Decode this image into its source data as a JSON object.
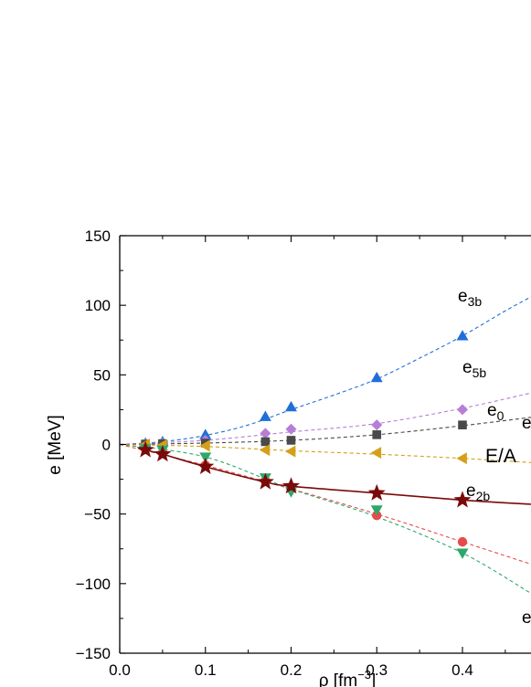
{
  "chart_data": {
    "type": "line",
    "title": "",
    "xlabel": "ρ [fm",
    "xlabel_sup": "−3",
    "xlabel_close": "]",
    "ylabel": "e [MeV]",
    "xlim": [
      0.0,
      0.48
    ],
    "ylim": [
      -150,
      150
    ],
    "x_ticks": [
      0.0,
      0.1,
      0.2,
      0.3,
      0.4
    ],
    "x_tick_labels": [
      "0.0",
      "0.1",
      "0.2",
      "0.3",
      "0.4"
    ],
    "y_ticks": [
      -150,
      -100,
      -50,
      0,
      50,
      100,
      150
    ],
    "y_tick_labels": [
      "−150",
      "−100",
      "−50",
      "0",
      "50",
      "100",
      "150"
    ],
    "grid": false,
    "series": [
      {
        "key": "e3b",
        "label_main": "e",
        "label_sub": "3b",
        "color": "#1f6fd8",
        "marker": "triangle-up",
        "line": "dashed",
        "x": [
          0.03,
          0.05,
          0.1,
          0.17,
          0.2,
          0.3,
          0.4
        ],
        "y": [
          1,
          2,
          7,
          20,
          27,
          48,
          78
        ],
        "fit_x": [
          0.0,
          0.05,
          0.1,
          0.15,
          0.2,
          0.25,
          0.3,
          0.35,
          0.4,
          0.45,
          0.48
        ],
        "fit_y": [
          0,
          2,
          6.5,
          14,
          25,
          35.5,
          47,
          62,
          78,
          96,
          106
        ]
      },
      {
        "key": "e5b",
        "label_main": "e",
        "label_sub": "5b",
        "color": "#b77ed6",
        "marker": "diamond",
        "line": "dashed",
        "x": [
          0.03,
          0.05,
          0.1,
          0.17,
          0.2,
          0.3,
          0.4
        ],
        "y": [
          0.5,
          1,
          3,
          8,
          11,
          14,
          25
        ],
        "fit_x": [
          0.0,
          0.1,
          0.2,
          0.3,
          0.4,
          0.48
        ],
        "fit_y": [
          0,
          3,
          9,
          15,
          26,
          37
        ]
      },
      {
        "key": "e0",
        "label_main": "e",
        "label_sub": "0",
        "color": "#4a4a4a",
        "marker": "square",
        "line": "dashed",
        "x": [
          0.03,
          0.05,
          0.1,
          0.17,
          0.2,
          0.3,
          0.4
        ],
        "y": [
          0.3,
          0.6,
          1,
          2,
          3,
          7,
          14
        ],
        "fit_x": [
          0.0,
          0.1,
          0.2,
          0.3,
          0.4,
          0.48
        ],
        "fit_y": [
          0,
          1,
          3,
          7,
          13.5,
          19.5
        ]
      },
      {
        "key": "e_tri",
        "label_main": "e",
        "label_sub": "",
        "color": "#d4a017",
        "marker": "triangle-left",
        "line": "dashed",
        "x": [
          0.03,
          0.05,
          0.1,
          0.17,
          0.2,
          0.3,
          0.4
        ],
        "y": [
          0,
          -0.5,
          -1,
          -4,
          -5,
          -6,
          -10
        ],
        "fit_x": [
          0.0,
          0.1,
          0.2,
          0.3,
          0.4,
          0.48
        ],
        "fit_y": [
          0,
          -1.5,
          -4.5,
          -7,
          -10,
          -13
        ]
      },
      {
        "key": "e2b",
        "label_main": "e",
        "label_sub": "2b",
        "color": "#e84a4a",
        "marker": "circle",
        "line": "dashed",
        "x": [
          0.03,
          0.05,
          0.1,
          0.17,
          0.2,
          0.3,
          0.4
        ],
        "y": [
          -3,
          -6,
          -15,
          -26,
          -32,
          -51,
          -70
        ],
        "fit_x": [
          0.0,
          0.1,
          0.2,
          0.3,
          0.4,
          0.48
        ],
        "fit_y": [
          0,
          -15,
          -32,
          -50,
          -70,
          -86
        ]
      },
      {
        "key": "e_down",
        "label_main": "e",
        "label_sub": "",
        "color": "#2ea86a",
        "marker": "triangle-down",
        "line": "dashed",
        "x": [
          0.03,
          0.05,
          0.1,
          0.17,
          0.2,
          0.3,
          0.4
        ],
        "y": [
          -3,
          -4,
          -9,
          -24,
          -34,
          -47,
          -78
        ],
        "fit_x": [
          0.0,
          0.1,
          0.2,
          0.3,
          0.4,
          0.48
        ],
        "fit_y": [
          0,
          -9,
          -32,
          -52,
          -78,
          -107
        ]
      },
      {
        "key": "EA",
        "label_main": "E/A",
        "label_sub": "",
        "color": "#7a0a0a",
        "marker": "star",
        "line": "solid",
        "x": [
          0.03,
          0.05,
          0.1,
          0.17,
          0.2,
          0.3,
          0.4
        ],
        "y": [
          -4,
          -7,
          -16,
          -27,
          -30,
          -35,
          -40
        ],
        "fit_x": [
          0.03,
          0.05,
          0.1,
          0.17,
          0.2,
          0.3,
          0.4,
          0.48
        ],
        "fit_y": [
          -4,
          -7,
          -16,
          -27,
          -30,
          -35,
          -40,
          -43
        ]
      }
    ]
  }
}
